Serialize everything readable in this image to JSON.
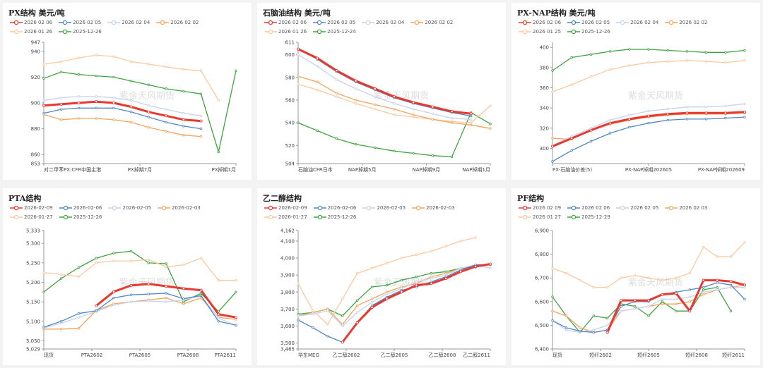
{
  "colors": {
    "s0": "#e8382f",
    "s1": "#4f86c6",
    "s2": "#c6d2ec",
    "s3": "#f4a35d",
    "s4": "#fcc8a0",
    "s5": "#3fa33f"
  },
  "watermark": "紫金天风期货",
  "chart_data": [
    {
      "type": "line",
      "title": "PX结构 美元/吨",
      "ylim": [
        853,
        947
      ],
      "yticks": [
        "947",
        "940",
        "920",
        "900",
        "880",
        "860",
        "853"
      ],
      "xticks": [
        "对二甲苯PX:CFR中国主港",
        "PX掉期7月",
        "PX掉期1月"
      ],
      "series": [
        {
          "name": "2026 02 06",
          "values": [
            898,
            899,
            900,
            901,
            900,
            897,
            893,
            890,
            887,
            886
          ]
        },
        {
          "name": "2026 02 05",
          "values": [
            892,
            895,
            896,
            896,
            896,
            893,
            889,
            885,
            882,
            880
          ]
        },
        {
          "name": "2026 02 04",
          "values": [
            902,
            904,
            905,
            905,
            904,
            902,
            898,
            895,
            892,
            890
          ]
        },
        {
          "name": "2026 02 02",
          "values": [
            891,
            887,
            888,
            888,
            887,
            885,
            881,
            878,
            875,
            874
          ]
        },
        {
          "name": "2026 01 26",
          "values": [
            930,
            932,
            935,
            937,
            936,
            932,
            930,
            928,
            926,
            925,
            902
          ]
        },
        {
          "name": "2025-12-26",
          "values": [
            919,
            924,
            922,
            921,
            920,
            917,
            914,
            911,
            909,
            907,
            862,
            925
          ]
        }
      ]
    },
    {
      "type": "line",
      "title": "石脑油结构 美元/吨",
      "ylim": [
        504,
        611
      ],
      "yticks": [
        "611",
        "600",
        "580",
        "560",
        "540",
        "520",
        "504"
      ],
      "xticks": [
        "石脑油CFR日本",
        "NAP掉期5月",
        "NAP掉期9月",
        "NAP掉期1月"
      ],
      "series": [
        {
          "name": "2026 02 06",
          "values": [
            605,
            597,
            586,
            577,
            570,
            563,
            558,
            554,
            550,
            548
          ]
        },
        {
          "name": "2026 02 05",
          "values": [
            605,
            596,
            585,
            576,
            569,
            562,
            557,
            553,
            549,
            546
          ]
        },
        {
          "name": "2026 02 04",
          "values": [
            600,
            590,
            578,
            570,
            563,
            557,
            552,
            548,
            544,
            543
          ]
        },
        {
          "name": "2026 02 02",
          "values": [
            581,
            576,
            566,
            560,
            556,
            552,
            547,
            543,
            540,
            538,
            535
          ]
        },
        {
          "name": "2026 01 26",
          "values": [
            574,
            569,
            563,
            557,
            552,
            547,
            545,
            543,
            541,
            540,
            555
          ]
        },
        {
          "name": "2025-12-24",
          "values": [
            540,
            533,
            526,
            521,
            518,
            515,
            513,
            511,
            510,
            549,
            539
          ]
        }
      ]
    },
    {
      "type": "line",
      "title": "PX-NAP结构 美元/吨",
      "ylim": [
        285,
        405
      ],
      "yticks": [
        "400",
        "380",
        "360",
        "340",
        "320",
        "300"
      ],
      "xticks": [
        "PX-石脑油价差(5)",
        "PX-NAP掉期202605",
        "PX-NAP掉期202609"
      ],
      "series": [
        {
          "name": "2026 02 06",
          "values": [
            302,
            310,
            318,
            325,
            329,
            332,
            334,
            335,
            335,
            335,
            336
          ]
        },
        {
          "name": "2026 02 05",
          "values": [
            287,
            298,
            307,
            315,
            321,
            325,
            328,
            329,
            329,
            330,
            331
          ]
        },
        {
          "name": "2026 02 04",
          "values": [
            303,
            312,
            320,
            328,
            333,
            337,
            339,
            341,
            341,
            342,
            344
          ]
        },
        {
          "name": "2026 02 02",
          "values": [
            310,
            309,
            318,
            324,
            328,
            331,
            333,
            334,
            334,
            334,
            335
          ]
        },
        {
          "name": "2026 01 25",
          "values": [
            356,
            363,
            371,
            378,
            382,
            385,
            386,
            387,
            386,
            385,
            387
          ]
        },
        {
          "name": "2025-12-26",
          "values": [
            377,
            390,
            393,
            396,
            398,
            398,
            397,
            396,
            395,
            395,
            397
          ]
        }
      ]
    },
    {
      "type": "line",
      "title": "PTA结构",
      "ylim": [
        5029,
        5333
      ],
      "yticks": [
        "5,333",
        "5,300",
        "5,250",
        "5,200",
        "5,150",
        "5,100",
        "5,050",
        "5,029"
      ],
      "xticks": [
        "现货",
        "PTA2602",
        "PTA2605",
        "PTA2608",
        "PTA2611"
      ],
      "series": [
        {
          "name": "2026-02-09",
          "values": [
            null,
            null,
            null,
            5140,
            5176,
            5192,
            5196,
            5190,
            5184,
            5180,
            5118,
            5110
          ]
        },
        {
          "name": "2026-02-06",
          "values": [
            5085,
            5100,
            5120,
            5127,
            5160,
            5168,
            5170,
            5172,
            5158,
            5166,
            5100,
            5090
          ]
        },
        {
          "name": "2026-02-05",
          "values": [
            5083,
            5095,
            5110,
            5125,
            5142,
            5150,
            5152,
            5150,
            5155,
            5165,
            5108,
            5089
          ]
        },
        {
          "name": "2026-02-03",
          "values": [
            5080,
            5080,
            5082,
            5128,
            5145,
            5150,
            5155,
            5160,
            5145,
            5160,
            5110,
            5105
          ]
        },
        {
          "name": "2026-01-27",
          "values": [
            5225,
            5220,
            5215,
            5250,
            5255,
            5255,
            5258,
            5240,
            5245,
            5262,
            5205,
            5205
          ]
        },
        {
          "name": "2025-12-26",
          "values": [
            5175,
            5210,
            5238,
            5262,
            5275,
            5280,
            5250,
            5248,
            5150,
            5172,
            5125,
            5175
          ]
        }
      ]
    },
    {
      "type": "line",
      "title": "乙二醇结构",
      "ylim": [
        3465,
        4162
      ],
      "yticks": [
        "4,162",
        "4,100",
        "4,000",
        "3,900",
        "3,800",
        "3,700",
        "3,600",
        "3,500",
        "3,465"
      ],
      "xticks": [
        "华东MEG",
        "乙二醇2602",
        "乙二醇2605",
        "乙二醇2608",
        "乙二醇2611"
      ],
      "series": [
        {
          "name": "2026-02-09",
          "values": [
            null,
            null,
            null,
            3505,
            3620,
            3710,
            3760,
            3800,
            3840,
            3850,
            3880,
            3920,
            3950,
            3965
          ]
        },
        {
          "name": "2026-02-06",
          "values": [
            3635,
            3590,
            3540,
            3505,
            3620,
            3720,
            3770,
            3810,
            3830,
            3860,
            3890,
            3930,
            3960,
            3962
          ]
        },
        {
          "name": "2026-02-05",
          "values": [
            3660,
            3670,
            3690,
            3600,
            3680,
            3740,
            3790,
            3820,
            3860,
            3880,
            3900,
            3940,
            3960,
            3940
          ]
        },
        {
          "name": "2026-02-03",
          "values": [
            3660,
            3680,
            3700,
            3610,
            3720,
            3760,
            3800,
            3830,
            3850,
            3890,
            3910,
            3940,
            3960,
            3960
          ]
        },
        {
          "name": "2026-01-27",
          "values": [
            3850,
            3690,
            3610,
            3760,
            3910,
            3940,
            3970,
            4000,
            4020,
            4040,
            4070,
            4100,
            4120
          ]
        },
        {
          "name": "2025-12-26",
          "values": [
            3670,
            3680,
            3700,
            3660,
            3750,
            3830,
            3840,
            3870,
            3890,
            3910,
            3920,
            3940,
            3945
          ]
        }
      ]
    },
    {
      "type": "line",
      "title": "PF结构",
      "ylim": [
        6400,
        6900
      ],
      "yticks": [
        "6,900",
        "6,800",
        "6,700",
        "6,600",
        "6,500",
        "6,400"
      ],
      "xticks": [
        "现货",
        "短纤2602",
        "短纤2605",
        "短纤2608",
        "短纤2611"
      ],
      "series": [
        {
          "name": "2026 02 09",
          "values": [
            null,
            null,
            null,
            null,
            6470,
            6605,
            6605,
            6605,
            6630,
            6635,
            6560,
            6690,
            6690,
            6685,
            6670
          ]
        },
        {
          "name": "2026 02 06",
          "values": [
            6520,
            6490,
            6475,
            6470,
            6480,
            6580,
            6600,
            6600,
            6630,
            6640,
            6650,
            6660,
            6680,
            6670,
            6610
          ]
        },
        {
          "name": "2026 02 05",
          "values": [
            6520,
            6480,
            6470,
            6480,
            6500,
            6560,
            6570,
            6580,
            6610,
            6610,
            6620,
            6640,
            6650,
            6660,
            6660
          ]
        },
        {
          "name": "2026 02 03",
          "values": [
            6560,
            6540,
            6490,
            6470,
            6480,
            6560,
            6570,
            6580,
            6590,
            6590,
            6600,
            6630,
            6650,
            6660,
            6670
          ]
        },
        {
          "name": "2026 01 27",
          "values": [
            6740,
            6720,
            6690,
            6660,
            6660,
            6700,
            6710,
            6700,
            6690,
            6700,
            6720,
            6830,
            6790,
            6790,
            6850
          ]
        },
        {
          "name": "2025-12-29",
          "values": [
            6620,
            6540,
            6470,
            6540,
            6530,
            6590,
            6580,
            6540,
            6600,
            6560,
            6560,
            6650,
            6660,
            6560
          ]
        }
      ]
    }
  ]
}
